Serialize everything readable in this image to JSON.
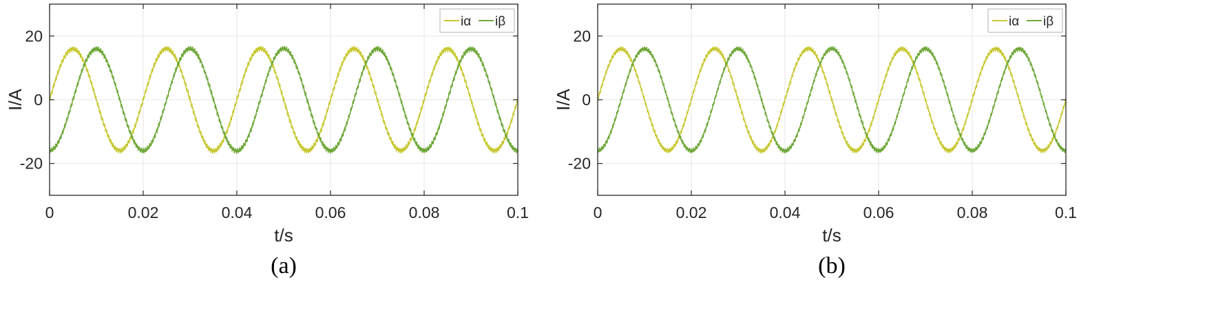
{
  "colors": {
    "ialpha": "#c8c832",
    "ibeta": "#6fa83a",
    "grid": "#e6e6e6",
    "axis": "#262626"
  },
  "chart_data": [
    {
      "type": "line",
      "caption": "(a)",
      "xlabel": "t/s",
      "ylabel": "I/A",
      "xlim": [
        0,
        0.1
      ],
      "ylim": [
        -30,
        30
      ],
      "xticks": [
        0,
        0.02,
        0.04,
        0.06,
        0.08,
        0.1
      ],
      "xtick_labels": [
        "0",
        "0.02",
        "0.04",
        "0.06",
        "0.08",
        "0.1"
      ],
      "yticks": [
        -20,
        0,
        20
      ],
      "ytick_labels": [
        "-20",
        "0",
        "20"
      ],
      "grid": true,
      "legend_position": "top-right",
      "frequency_hz": 50,
      "ripple_amplitude": 1.0,
      "series": [
        {
          "name": "iα",
          "amplitude": 16,
          "phase": "sin",
          "color_key": "ialpha"
        },
        {
          "name": "iβ",
          "amplitude": 16,
          "phase": "-cos",
          "color_key": "ibeta"
        }
      ]
    },
    {
      "type": "line",
      "caption": "(b)",
      "xlabel": "t/s",
      "ylabel": "I/A",
      "xlim": [
        0,
        0.1
      ],
      "ylim": [
        -30,
        30
      ],
      "xticks": [
        0,
        0.02,
        0.04,
        0.06,
        0.08,
        0.1
      ],
      "xtick_labels": [
        "0",
        "0.02",
        "0.04",
        "0.06",
        "0.08",
        "0.1"
      ],
      "yticks": [
        -20,
        0,
        20
      ],
      "ytick_labels": [
        "-20",
        "0",
        "20"
      ],
      "grid": true,
      "legend_position": "top-right",
      "frequency_hz": 50,
      "ripple_amplitude": 0.9,
      "series": [
        {
          "name": "iα",
          "amplitude": 16,
          "phase": "sin",
          "color_key": "ialpha"
        },
        {
          "name": "iβ",
          "amplitude": 16,
          "phase": "-cos",
          "color_key": "ibeta"
        }
      ]
    }
  ]
}
